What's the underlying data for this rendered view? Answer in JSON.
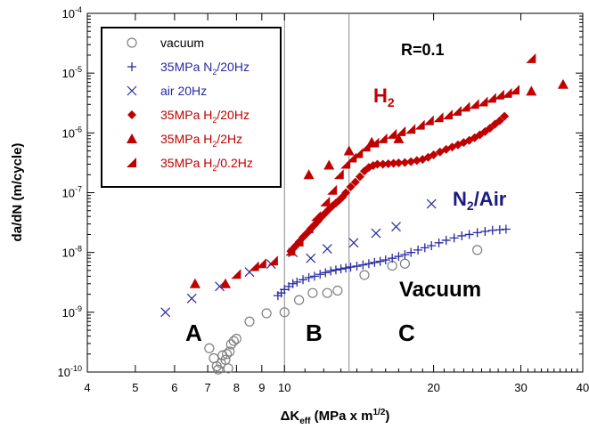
{
  "chart_data": {
    "type": "scatter",
    "title": "",
    "xlabel": {
      "main": "ΔK",
      "sub": "eff",
      "rest": " (MPa x m",
      "sup": "1/2",
      "end": ")"
    },
    "ylabel": "da/dN (m/cycle)",
    "x_scale": "log",
    "y_scale": "log",
    "xlim": [
      4,
      40
    ],
    "ylim": [
      1e-10,
      0.0001
    ],
    "x_ticks": [
      {
        "v": 4,
        "label": "4"
      },
      {
        "v": 5,
        "label": "5"
      },
      {
        "v": 6,
        "label": "6"
      },
      {
        "v": 7,
        "label": "7"
      },
      {
        "v": 8,
        "label": "8"
      },
      {
        "v": 9,
        "label": "9"
      },
      {
        "v": 10,
        "label": "10"
      },
      {
        "v": 20,
        "label": "20"
      },
      {
        "v": 30,
        "label": "30"
      },
      {
        "v": 40,
        "label": "40"
      }
    ],
    "y_ticks": [
      {
        "v": 1e-10,
        "base": "10",
        "exp": "-10"
      },
      {
        "v": 1e-09,
        "base": "10",
        "exp": "-9"
      },
      {
        "v": 1e-08,
        "base": "10",
        "exp": "-8"
      },
      {
        "v": 1e-07,
        "base": "10",
        "exp": "-7"
      },
      {
        "v": 1e-06,
        "base": "10",
        "exp": "-6"
      },
      {
        "v": 1e-05,
        "base": "10",
        "exp": "-5"
      },
      {
        "v": 0.0001,
        "base": "10",
        "exp": "-4"
      }
    ],
    "vertical_lines": [
      10,
      13.5
    ],
    "legend_position": "top-left",
    "legend": [
      {
        "series": "vacuum",
        "parts": [
          {
            "t": "vacuum"
          }
        ]
      },
      {
        "series": "n2",
        "parts": [
          {
            "t": "35MPa N"
          },
          {
            "t": "2",
            "sub": true
          },
          {
            "t": "/20Hz"
          }
        ]
      },
      {
        "series": "air",
        "parts": [
          {
            "t": "air 20Hz"
          }
        ]
      },
      {
        "series": "h2_20",
        "parts": [
          {
            "t": "35MPa H"
          },
          {
            "t": "2",
            "sub": true
          },
          {
            "t": "/20Hz"
          }
        ]
      },
      {
        "series": "h2_2",
        "parts": [
          {
            "t": "35MPa H"
          },
          {
            "t": "2",
            "sub": true
          },
          {
            "t": "/2Hz"
          }
        ]
      },
      {
        "series": "h2_02",
        "parts": [
          {
            "t": "35MPa H"
          },
          {
            "t": "2",
            "sub": true
          },
          {
            "t": "/0.2Hz"
          }
        ]
      }
    ],
    "annotations": {
      "ratio": "R=0.1",
      "h2": {
        "main": "H",
        "sub": "2"
      },
      "n2air": {
        "main": "N",
        "sub": "2",
        "rest": "/Air"
      },
      "vacuum": "Vacuum",
      "region_a": "A",
      "region_b": "B",
      "region_c": "C"
    },
    "colors": {
      "vacuum": "#7f7f7f",
      "blue": "#2828a0",
      "red": "#c00000",
      "annotation_blue": "#1a1a80"
    },
    "series": [
      {
        "key": "vacuum",
        "marker": "circle-open",
        "color": "#7f7f7f",
        "points": [
          [
            7.05,
            2.5e-10
          ],
          [
            7.2,
            1.7e-10
          ],
          [
            7.3,
            1.25e-10
          ],
          [
            7.35,
            1.1e-10
          ],
          [
            7.45,
            1.4e-10
          ],
          [
            7.5,
            1.9e-10
          ],
          [
            7.6,
            1.6e-10
          ],
          [
            7.65,
            2e-10
          ],
          [
            7.7,
            1.15e-10
          ],
          [
            7.75,
            2.2e-10
          ],
          [
            7.8,
            2.9e-10
          ],
          [
            7.9,
            3.3e-10
          ],
          [
            8.0,
            3.6e-10
          ],
          [
            8.5,
            7e-10
          ],
          [
            9.2,
            9.6e-10
          ],
          [
            10.0,
            1e-09
          ],
          [
            10.7,
            1.6e-09
          ],
          [
            11.4,
            2.1e-09
          ],
          [
            12.2,
            2.1e-09
          ],
          [
            12.8,
            2.3e-09
          ],
          [
            14.5,
            4.2e-09
          ],
          [
            16.5,
            6e-09
          ],
          [
            17.5,
            6.5e-09
          ],
          [
            24.5,
            1.1e-08
          ]
        ]
      },
      {
        "key": "n2",
        "marker": "plus",
        "color": "#2828a0",
        "points": [
          [
            9.7,
            1.9e-09
          ],
          [
            9.85,
            2.1e-09
          ],
          [
            10.0,
            2.4e-09
          ],
          [
            10.2,
            2.7e-09
          ],
          [
            10.4,
            3e-09
          ],
          [
            10.6,
            3.2e-09
          ],
          [
            10.9,
            3.5e-09
          ],
          [
            11.2,
            3.8e-09
          ],
          [
            11.5,
            4e-09
          ],
          [
            11.8,
            4.3e-09
          ],
          [
            12.1,
            4.6e-09
          ],
          [
            12.4,
            4.9e-09
          ],
          [
            12.7,
            5.1e-09
          ],
          [
            13.0,
            5.3e-09
          ],
          [
            13.3,
            5.5e-09
          ],
          [
            13.6,
            5.7e-09
          ],
          [
            14.0,
            5.9e-09
          ],
          [
            14.4,
            6.2e-09
          ],
          [
            14.8,
            6.5e-09
          ],
          [
            15.2,
            6.8e-09
          ],
          [
            15.6,
            7.1e-09
          ],
          [
            16.0,
            7.5e-09
          ],
          [
            16.5,
            8e-09
          ],
          [
            17.0,
            8.6e-09
          ],
          [
            17.5,
            9.2e-09
          ],
          [
            18.0,
            1e-08
          ],
          [
            18.6,
            1.1e-08
          ],
          [
            19.2,
            1.2e-08
          ],
          [
            19.8,
            1.3e-08
          ],
          [
            20.5,
            1.45e-08
          ],
          [
            21.2,
            1.6e-08
          ],
          [
            22.0,
            1.75e-08
          ],
          [
            22.8,
            1.9e-08
          ],
          [
            23.6,
            2e-08
          ],
          [
            24.5,
            2.15e-08
          ],
          [
            25.4,
            2.25e-08
          ],
          [
            26.3,
            2.35e-08
          ],
          [
            27.2,
            2.4e-08
          ],
          [
            28.0,
            2.45e-08
          ]
        ]
      },
      {
        "key": "air",
        "marker": "x",
        "color": "#2828a0",
        "points": [
          [
            5.75,
            1e-09
          ],
          [
            6.5,
            1.7e-09
          ],
          [
            7.4,
            2.7e-09
          ],
          [
            8.5,
            4.7e-09
          ],
          [
            9.4,
            6.4e-09
          ],
          [
            10.4,
            1e-08
          ],
          [
            11.3,
            8e-09
          ],
          [
            12.2,
            1.15e-08
          ],
          [
            13.8,
            1.45e-08
          ],
          [
            15.3,
            2.1e-08
          ],
          [
            16.8,
            2.7e-08
          ],
          [
            19.8,
            6.5e-08
          ]
        ]
      },
      {
        "key": "h2_20",
        "marker": "diamond",
        "color": "#c00000",
        "points": [
          [
            10.3,
            1.05e-08
          ],
          [
            10.5,
            1.25e-08
          ],
          [
            10.7,
            1.5e-08
          ],
          [
            10.9,
            1.8e-08
          ],
          [
            11.1,
            2.1e-08
          ],
          [
            11.3,
            2.5e-08
          ],
          [
            11.5,
            2.9e-08
          ],
          [
            11.7,
            3.4e-08
          ],
          [
            11.9,
            4e-08
          ],
          [
            12.1,
            4.6e-08
          ],
          [
            12.3,
            5.3e-08
          ],
          [
            12.5,
            6e-08
          ],
          [
            12.7,
            6.7e-08
          ],
          [
            12.9,
            7.5e-08
          ],
          [
            13.1,
            8.5e-08
          ],
          [
            13.3,
            1e-07
          ],
          [
            13.6,
            1.25e-07
          ],
          [
            13.9,
            1.5e-07
          ],
          [
            14.2,
            1.85e-07
          ],
          [
            14.5,
            2.3e-07
          ],
          [
            14.8,
            2.65e-07
          ],
          [
            15.1,
            2.85e-07
          ],
          [
            15.4,
            3e-07
          ],
          [
            15.8,
            3e-07
          ],
          [
            16.2,
            3.05e-07
          ],
          [
            16.6,
            3.1e-07
          ],
          [
            17.0,
            3.15e-07
          ],
          [
            17.5,
            3.2e-07
          ],
          [
            18.0,
            3.3e-07
          ],
          [
            18.5,
            3.45e-07
          ],
          [
            19.0,
            3.6e-07
          ],
          [
            19.5,
            3.9e-07
          ],
          [
            20.0,
            4.3e-07
          ],
          [
            20.6,
            4.8e-07
          ],
          [
            21.2,
            5.3e-07
          ],
          [
            21.8,
            5.8e-07
          ],
          [
            22.4,
            6.3e-07
          ],
          [
            23.0,
            6.9e-07
          ],
          [
            23.6,
            7.5e-07
          ],
          [
            24.2,
            8.3e-07
          ],
          [
            24.8,
            9.3e-07
          ],
          [
            25.4,
            1.05e-06
          ],
          [
            26.0,
            1.2e-06
          ],
          [
            26.6,
            1.4e-06
          ],
          [
            27.2,
            1.6e-06
          ],
          [
            27.8,
            1.9e-06
          ]
        ]
      },
      {
        "key": "h2_2",
        "marker": "triangle",
        "color": "#c00000",
        "points": [
          [
            6.6,
            3e-09
          ],
          [
            7.6,
            3e-09
          ],
          [
            11.2,
            2e-07
          ],
          [
            12.3,
            2.9e-07
          ],
          [
            13.5,
            5e-07
          ],
          [
            15.0,
            7e-07
          ],
          [
            17.0,
            8e-07
          ],
          [
            31.5,
            5e-06
          ],
          [
            36.5,
            6.5e-06
          ]
        ]
      },
      {
        "key": "h2_02",
        "marker": "triangle-corner",
        "color": "#c00000",
        "points": [
          [
            8.0,
            4.3e-09
          ],
          [
            8.7,
            5.8e-09
          ],
          [
            9.0,
            6.5e-09
          ],
          [
            9.5,
            7.2e-09
          ],
          [
            10.3,
            1.05e-08
          ],
          [
            10.7,
            1.5e-08
          ],
          [
            11.2,
            2.5e-08
          ],
          [
            11.6,
            4e-08
          ],
          [
            12.1,
            7e-08
          ],
          [
            12.5,
            1.1e-07
          ],
          [
            12.9,
            2e-07
          ],
          [
            13.3,
            3e-07
          ],
          [
            13.7,
            3.8e-07
          ],
          [
            14.1,
            4.5e-07
          ],
          [
            14.6,
            5.8e-07
          ],
          [
            15.2,
            6.8e-07
          ],
          [
            15.8,
            8e-07
          ],
          [
            16.5,
            9.5e-07
          ],
          [
            17.2,
            1.05e-06
          ],
          [
            18.0,
            1.15e-06
          ],
          [
            18.8,
            1.35e-06
          ],
          [
            19.6,
            1.6e-06
          ],
          [
            20.5,
            1.8e-06
          ],
          [
            21.4,
            2e-06
          ],
          [
            22.3,
            2.3e-06
          ],
          [
            23.2,
            2.7e-06
          ],
          [
            24.2,
            3e-06
          ],
          [
            25.2,
            3.3e-06
          ],
          [
            26.2,
            3.8e-06
          ],
          [
            27.2,
            4.3e-06
          ],
          [
            28.2,
            4.6e-06
          ],
          [
            29.2,
            5.2e-06
          ],
          [
            31.5,
            1.75e-05
          ]
        ]
      }
    ]
  }
}
